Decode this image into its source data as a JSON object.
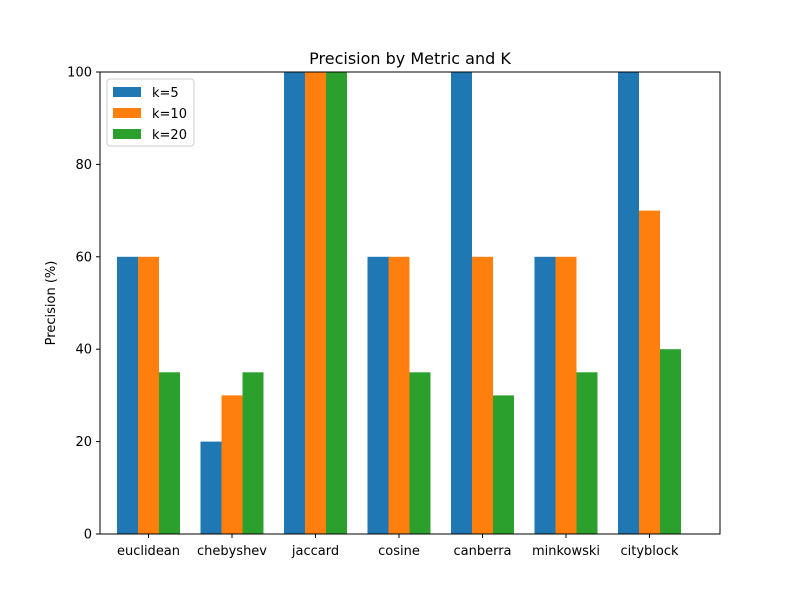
{
  "chart_data": {
    "type": "bar",
    "title": "Precision by Metric and K",
    "xlabel": "",
    "ylabel": "Precision (%)",
    "ylim": [
      0,
      100
    ],
    "yticks": [
      0,
      20,
      40,
      60,
      80,
      100
    ],
    "categories": [
      "euclidean",
      "chebyshev",
      "jaccard",
      "cosine",
      "canberra",
      "minkowski",
      "cityblock"
    ],
    "series": [
      {
        "name": "k=5",
        "color": "#1f77b4",
        "values": [
          60,
          20,
          100,
          60,
          100,
          60,
          100
        ]
      },
      {
        "name": "k=10",
        "color": "#ff7f0e",
        "values": [
          60,
          30,
          100,
          60,
          60,
          60,
          70
        ]
      },
      {
        "name": "k=20",
        "color": "#2ca02c",
        "values": [
          35,
          35,
          100,
          35,
          30,
          35,
          40
        ]
      }
    ],
    "legend_position": "top-left",
    "grid": false
  }
}
